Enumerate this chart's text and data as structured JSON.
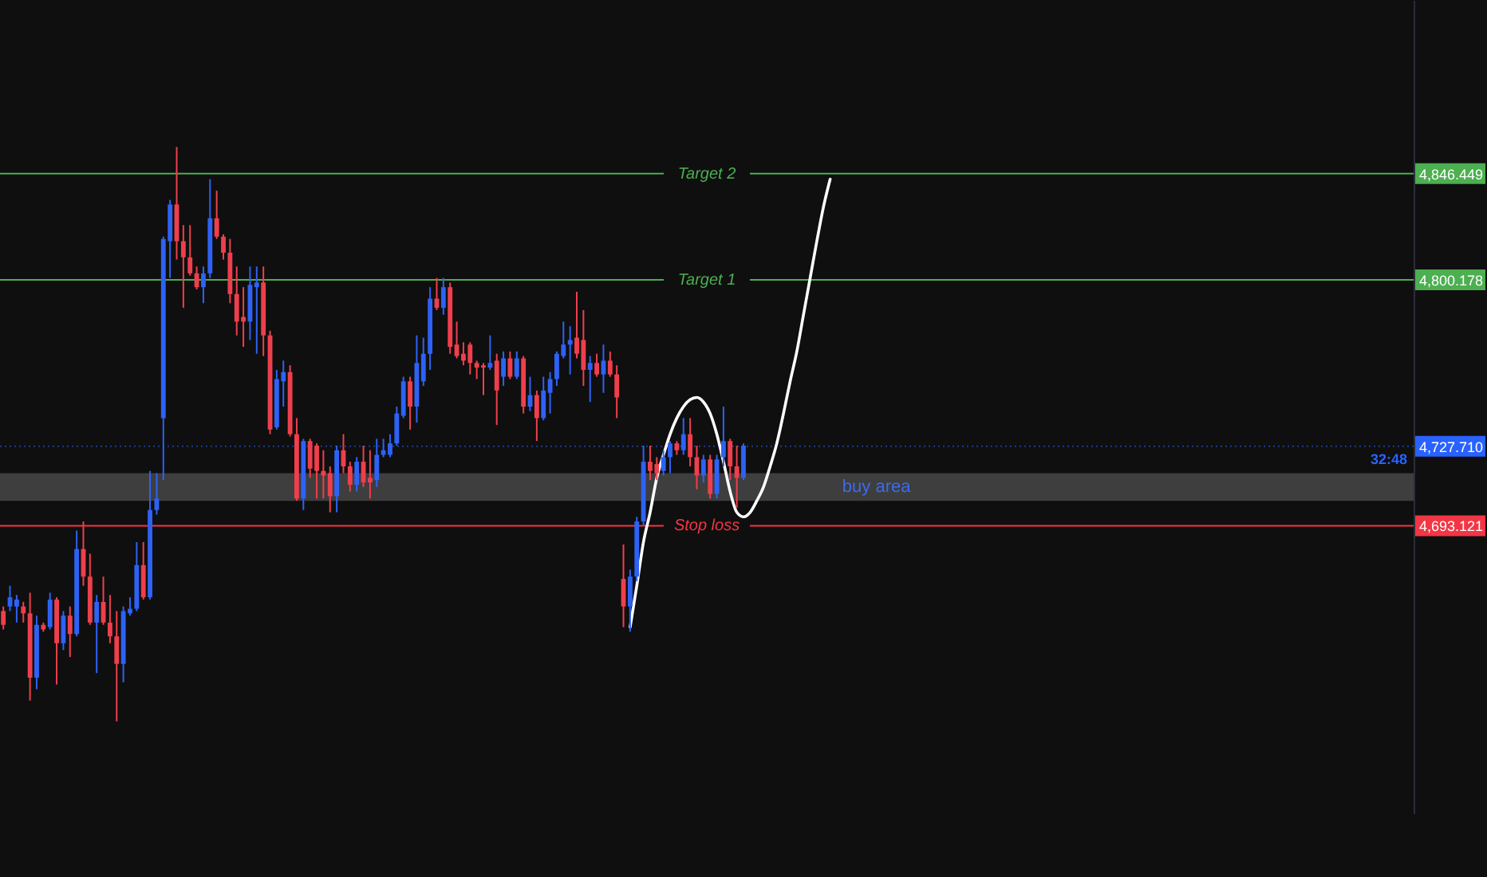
{
  "chart_data": {
    "type": "candlestick",
    "categories": [
      null,
      null,
      null,
      null,
      null,
      null,
      null,
      null,
      null,
      null,
      null,
      null,
      null,
      null,
      null,
      null,
      null,
      null,
      null,
      null,
      null,
      null,
      null,
      null,
      null,
      null,
      null,
      null,
      null,
      null,
      null,
      null,
      null,
      null,
      null,
      null,
      null,
      null,
      null,
      null,
      null,
      null,
      null,
      null,
      null,
      null,
      null,
      null,
      null,
      null,
      null,
      null,
      null,
      null,
      null,
      null,
      null,
      null,
      null,
      null,
      null,
      null,
      null,
      null,
      null,
      null,
      null,
      null,
      null,
      null,
      null,
      null,
      null,
      null,
      null,
      null,
      null,
      null,
      null,
      null,
      null,
      null,
      null,
      null,
      null,
      null,
      null,
      null,
      null,
      null,
      null,
      null,
      null,
      null,
      null,
      null,
      null,
      null,
      null,
      null,
      null,
      null,
      null,
      null,
      null,
      null,
      null,
      null,
      null,
      null,
      null,
      null,
      null,
      null,
      null,
      null,
      null,
      null,
      null,
      null,
      null,
      null,
      null,
      null,
      null,
      null,
      null,
      null,
      null,
      null,
      null,
      null,
      null,
      null,
      null,
      null,
      null,
      null,
      null,
      null,
      null,
      null,
      null,
      null,
      null,
      null,
      null,
      null,
      null,
      null,
      null,
      null,
      null,
      null,
      null,
      null,
      null,
      null,
      null,
      null,
      null,
      null,
      null,
      null,
      null,
      null,
      null,
      null,
      null,
      null,
      null,
      null,
      null,
      null,
      null,
      null,
      null,
      null,
      null,
      null,
      null,
      null,
      null,
      null,
      null,
      null,
      null,
      null,
      null,
      null,
      null,
      null,
      null,
      null,
      null,
      null,
      null,
      null,
      null,
      null,
      null,
      null,
      null,
      null,
      null,
      null,
      null,
      null,
      null,
      null,
      null,
      null
    ],
    "ohlc": [
      [
        4656,
        4658,
        4648,
        4650
      ],
      [
        4658,
        4667,
        4656,
        4662
      ],
      [
        4658,
        4663,
        4651,
        4661
      ],
      [
        4658,
        4660,
        4651,
        4655
      ],
      [
        4655,
        4664,
        4617,
        4627
      ],
      [
        4627,
        4654,
        4622,
        4650
      ],
      [
        4650,
        4651,
        4647,
        4648
      ],
      [
        4649,
        4664,
        4648,
        4661
      ],
      [
        4661,
        4662,
        4624,
        4642
      ],
      [
        4642,
        4656,
        4639,
        4654
      ],
      [
        4654,
        4658,
        4636,
        4646
      ],
      [
        4646,
        4691,
        4645,
        4683
      ],
      [
        4683,
        4695,
        4667,
        4671
      ],
      [
        4671,
        4681,
        4650,
        4651
      ],
      [
        4651,
        4663,
        4629,
        4660
      ],
      [
        4660,
        4671,
        4650,
        4651
      ],
      [
        4651,
        4663,
        4642,
        4645
      ],
      [
        4645,
        4656,
        4608,
        4633
      ],
      [
        4633,
        4658,
        4625,
        4656
      ],
      [
        4655,
        4662,
        4654,
        4657
      ],
      [
        4657,
        4686,
        4656,
        4676
      ],
      [
        4676,
        4686,
        4661,
        4662
      ],
      [
        4662,
        4717,
        4661,
        4700
      ],
      [
        4700,
        4716,
        4698,
        4705
      ],
      [
        4740,
        4819,
        4713,
        4818
      ],
      [
        4817,
        4835,
        4801,
        4833
      ],
      [
        4833,
        4858,
        4809,
        4817
      ],
      [
        4817,
        4824,
        4788,
        4810
      ],
      [
        4810,
        4824,
        4802,
        4803
      ],
      [
        4803,
        4806,
        4796,
        4797
      ],
      [
        4797,
        4806,
        4790,
        4803
      ],
      [
        4803,
        4844,
        4801,
        4827
      ],
      [
        4827,
        4839,
        4818,
        4819
      ],
      [
        4819,
        4820,
        4809,
        4812
      ],
      [
        4812,
        4818,
        4790,
        4794
      ],
      [
        4794,
        4806,
        4776,
        4782
      ],
      [
        4784,
        4797,
        4771,
        4782
      ],
      [
        4782,
        4806,
        4774,
        4798
      ],
      [
        4797,
        4806,
        4768,
        4799
      ],
      [
        4799,
        4806,
        4767,
        4776
      ],
      [
        4776,
        4778,
        4733,
        4735
      ],
      [
        4736,
        4761,
        4735,
        4757
      ],
      [
        4756,
        4765,
        4745,
        4760
      ],
      [
        4760,
        4763,
        4732,
        4733
      ],
      [
        4733,
        4740,
        4704,
        4705
      ],
      [
        4705,
        4731,
        4700,
        4730
      ],
      [
        4730,
        4731,
        4714,
        4718
      ],
      [
        4728,
        4729,
        4705,
        4717
      ],
      [
        4717,
        4726,
        4705,
        4715
      ],
      [
        4716,
        4719,
        4699,
        4706
      ],
      [
        4706,
        4728,
        4699,
        4726
      ],
      [
        4726,
        4733,
        4716,
        4719
      ],
      [
        4719,
        4721,
        4708,
        4711
      ],
      [
        4711,
        4723,
        4708,
        4721
      ],
      [
        4721,
        4728,
        4710,
        4712
      ],
      [
        4714,
        4726,
        4705,
        4712
      ],
      [
        4713,
        4731,
        4710,
        4724
      ],
      [
        4724,
        4731,
        4723,
        4726
      ],
      [
        4724,
        4733,
        4723,
        4729
      ],
      [
        4729,
        4745,
        4728,
        4742
      ],
      [
        4741,
        4758,
        4740,
        4756
      ],
      [
        4756,
        4758,
        4735,
        4745
      ],
      [
        4745,
        4776,
        4738,
        4764
      ],
      [
        4756,
        4775,
        4754,
        4768
      ],
      [
        4768,
        4797,
        4761,
        4792
      ],
      [
        4792,
        4801,
        4787,
        4788
      ],
      [
        4788,
        4801,
        4785,
        4797
      ],
      [
        4797,
        4799,
        4768,
        4771
      ],
      [
        4772,
        4782,
        4766,
        4767
      ],
      [
        4768,
        4773,
        4763,
        4765
      ],
      [
        4772,
        4773,
        4759,
        4764
      ],
      [
        4764,
        4765,
        4757,
        4762
      ],
      [
        4763,
        4764,
        4750,
        4762
      ],
      [
        4762,
        4776,
        4761,
        4764
      ],
      [
        4765,
        4768,
        4737,
        4752
      ],
      [
        4758,
        4769,
        4754,
        4766
      ],
      [
        4766,
        4769,
        4757,
        4758
      ],
      [
        4758,
        4769,
        4757,
        4766
      ],
      [
        4766,
        4767,
        4742,
        4745
      ],
      [
        4745,
        4758,
        4743,
        4750
      ],
      [
        4750,
        4752,
        4730,
        4740
      ],
      [
        4740,
        4758,
        4739,
        4752
      ],
      [
        4751,
        4760,
        4742,
        4757
      ],
      [
        4757,
        4769,
        4754,
        4768
      ],
      [
        4767,
        4782,
        4766,
        4772
      ],
      [
        4772,
        4780,
        4759,
        4774
      ],
      [
        4775,
        4795,
        4766,
        4768
      ],
      [
        4774,
        4787,
        4754,
        4761
      ],
      [
        4761,
        4767,
        4747,
        4764
      ],
      [
        4764,
        4768,
        4758,
        4759
      ],
      [
        4759,
        4772,
        4751,
        4765
      ],
      [
        4765,
        4769,
        4758,
        4759
      ],
      [
        4759,
        4763,
        4740,
        4749
      ],
      [
        4670,
        4685,
        4649,
        4658
      ],
      [
        4658,
        4674,
        4647,
        4671
      ],
      [
        4671,
        4697,
        4669,
        4695
      ],
      [
        4695,
        4728,
        4693,
        4721
      ],
      [
        4721,
        4728,
        4713,
        4717
      ],
      [
        4720,
        4723,
        4713,
        4716
      ],
      [
        4717,
        4726,
        4715,
        4723
      ],
      [
        4723,
        4730,
        4716,
        4729
      ],
      [
        4729,
        4730,
        4724,
        4726
      ],
      [
        4726,
        4740,
        4724,
        4733
      ],
      [
        4733,
        4740,
        4719,
        4723
      ],
      [
        4723,
        4728,
        4709,
        4715
      ],
      [
        4715,
        4724,
        4712,
        4722
      ],
      [
        4722,
        4724,
        4705,
        4707
      ],
      [
        4707,
        4724,
        4705,
        4722
      ],
      [
        4723,
        4745,
        4719,
        4730
      ],
      [
        4730,
        4731,
        4713,
        4719
      ],
      [
        4719,
        4728,
        4701,
        4714
      ],
      [
        4714,
        4729,
        4713,
        4728
      ],
      null,
      null,
      null,
      null,
      null,
      null,
      null,
      null,
      null,
      null,
      null,
      null,
      null,
      null,
      null,
      null,
      null,
      null,
      null,
      null,
      null,
      null,
      null,
      null,
      null,
      null,
      null,
      null,
      null,
      null,
      null,
      null,
      null,
      null,
      null,
      null,
      null,
      null,
      null,
      null,
      null,
      null,
      null,
      null,
      null,
      null,
      null,
      null,
      null,
      null,
      null,
      null,
      null,
      null,
      null,
      null,
      null,
      null,
      null,
      null,
      null,
      null,
      null,
      null,
      null,
      null,
      null,
      null,
      null,
      null,
      null,
      null,
      null,
      null,
      null,
      null,
      null,
      null,
      null,
      null,
      null,
      null,
      null,
      null,
      null,
      null,
      null,
      null,
      null,
      null,
      null,
      null,
      null,
      null,
      null,
      null,
      null,
      null,
      null,
      null
    ],
    "colors": [
      "#ef3f4c",
      "#2e62f5",
      "#2e62f5",
      "#ef3f4c",
      "#ef3f4c",
      "#2e62f5",
      "#ef3f4c",
      "#2e62f5",
      "#ef3f4c",
      "#2e62f5",
      "#ef3f4c",
      "#2e62f5",
      "#ef3f4c",
      "#ef3f4c",
      "#2e62f5",
      "#ef3f4c",
      "#ef3f4c",
      "#ef3f4c",
      "#2e62f5",
      "#2e62f5",
      "#2e62f5",
      "#ef3f4c",
      "#2e62f5",
      "#2e62f5",
      "#2e62f5",
      "#2e62f5",
      "#ef3f4c",
      "#ef3f4c",
      "#ef3f4c",
      "#ef3f4c",
      "#2e62f5",
      "#2e62f5",
      "#ef3f4c",
      "#ef3f4c",
      "#ef3f4c",
      "#ef3f4c",
      "#ef3f4c",
      "#2e62f5",
      "#2e62f5",
      "#ef3f4c",
      "#ef3f4c",
      "#2e62f5",
      "#2e62f5",
      "#ef3f4c",
      "#ef3f4c",
      "#2e62f5",
      "#ef3f4c",
      "#ef3f4c",
      "#ef3f4c",
      "#ef3f4c",
      "#2e62f5",
      "#ef3f4c",
      "#ef3f4c",
      "#2e62f5",
      "#ef3f4c",
      "#ef3f4c",
      "#2e62f5",
      "#2e62f5",
      "#2e62f5",
      "#2e62f5",
      "#2e62f5",
      "#ef3f4c",
      "#2e62f5",
      "#2e62f5",
      "#2e62f5",
      "#ef3f4c",
      "#2e62f5",
      "#ef3f4c",
      "#ef3f4c",
      "#ef3f4c",
      "#ef3f4c",
      "#ef3f4c",
      "#ef3f4c",
      "#2e62f5",
      "#ef3f4c",
      "#2e62f5",
      "#ef3f4c",
      "#2e62f5",
      "#ef3f4c",
      "#2e62f5",
      "#ef3f4c",
      "#2e62f5",
      "#2e62f5",
      "#2e62f5",
      "#2e62f5",
      "#2e62f5",
      "#ef3f4c",
      "#ef3f4c",
      "#2e62f5",
      "#ef3f4c",
      "#2e62f5",
      "#ef3f4c",
      "#ef3f4c",
      "#ef3f4c",
      "#2e62f5",
      "#2e62f5",
      "#2e62f5",
      "#ef3f4c",
      "#ef3f4c",
      "#2e62f5",
      "#2e62f5",
      "#ef3f4c",
      "#2e62f5",
      "#ef3f4c",
      "#ef3f4c",
      "#2e62f5",
      "#ef3f4c",
      "#2e62f5",
      "#2e62f5",
      "#ef3f4c",
      "#ef3f4c",
      "#2e62f5",
      null,
      null,
      null,
      null,
      null,
      null,
      null,
      null,
      null,
      null,
      null,
      null,
      null,
      null,
      null,
      null,
      null,
      null,
      null,
      null,
      null,
      null,
      null,
      null,
      null,
      null,
      null,
      null,
      null,
      null,
      null,
      null,
      null,
      null,
      null,
      null,
      null,
      null,
      null,
      null,
      null,
      null,
      null,
      null,
      null,
      null,
      null,
      null,
      null,
      null,
      null,
      null,
      null,
      null,
      null,
      null,
      null,
      null,
      null,
      null,
      null,
      null,
      null,
      null,
      null,
      null,
      null,
      null,
      null,
      null,
      null,
      null,
      null,
      null,
      null,
      null,
      null,
      null,
      null,
      null,
      null,
      null,
      null,
      null,
      null,
      null,
      null,
      null,
      null,
      null,
      null,
      null,
      null,
      null,
      null,
      null,
      null,
      null,
      null,
      null
    ],
    "series": [
      {
        "type": "line",
        "color": "#ffffff",
        "values": [
          null,
          null,
          null,
          null,
          null,
          null,
          null,
          null,
          null,
          null,
          null,
          null,
          null,
          null,
          null,
          null,
          null,
          null,
          null,
          null,
          null,
          null,
          null,
          null,
          null,
          null,
          null,
          null,
          null,
          null,
          null,
          null,
          null,
          null,
          null,
          null,
          null,
          null,
          null,
          null,
          null,
          null,
          null,
          null,
          null,
          null,
          null,
          null,
          null,
          null,
          null,
          null,
          null,
          null,
          null,
          null,
          null,
          null,
          null,
          null,
          null,
          null,
          null,
          null,
          null,
          null,
          null,
          null,
          null,
          null,
          null,
          null,
          null,
          null,
          null,
          null,
          null,
          null,
          null,
          null,
          null,
          null,
          null,
          null,
          null,
          null,
          null,
          null,
          null,
          null,
          null,
          null,
          null,
          null,
          4649,
          4667,
          4686,
          4699,
          4714,
          4724,
          4733,
          4740,
          4745,
          4748,
          4749,
          4747,
          4742,
          4733,
          4721,
          4708,
          4699,
          4697,
          4699,
          4704,
          4710,
          4719,
          4729,
          4742,
          4756,
          4769,
          4785,
          4801,
          4817,
          4832,
          4844,
          null,
          null,
          null,
          null,
          null,
          null,
          null,
          null,
          null,
          null,
          null,
          null,
          null,
          null,
          null,
          null,
          null,
          null,
          null,
          null,
          null,
          null,
          null,
          null,
          null,
          null,
          null,
          null,
          null,
          null,
          null,
          null,
          null,
          null,
          null,
          null,
          null,
          null,
          null,
          null,
          null,
          null,
          null,
          null,
          null,
          null,
          null,
          null,
          null,
          null,
          null,
          null,
          null,
          null,
          null,
          null,
          null,
          null,
          null,
          null,
          null,
          null,
          null,
          null,
          null,
          null,
          null,
          null,
          null,
          null,
          null,
          null,
          null,
          null,
          null,
          null,
          null,
          null,
          null,
          null,
          null,
          null,
          null,
          null,
          null,
          null,
          null
        ]
      }
    ],
    "ylim": [
      4568,
      4922
    ],
    "yticks": [
      {
        "value": 4846.449,
        "label": "4,846.449"
      },
      {
        "value": 4800.178,
        "label": "4,800.178"
      },
      {
        "value": 4727.71,
        "label": "4,727.710"
      },
      {
        "value": 4693.121,
        "label": "4,693.121"
      }
    ],
    "ref_lines": [
      {
        "axis": "y",
        "value": 4846.449,
        "label": "Target 2",
        "color": "#4caf50"
      },
      {
        "axis": "y",
        "value": 4800.178,
        "label": "Target 1",
        "color": "#4caf50"
      },
      {
        "axis": "y",
        "value": 4727.71,
        "color": "#2962ff",
        "line_style": "dotted"
      },
      {
        "axis": "y",
        "value": 4693.121,
        "label": "Stop loss",
        "color": "#f23645"
      }
    ],
    "bands": [
      {
        "axis": "y",
        "from": 4704,
        "to": 4716,
        "label": "buy area",
        "color": "#4a4a4a"
      }
    ],
    "annotations": [
      "32:48"
    ],
    "tick_labels": "y"
  }
}
